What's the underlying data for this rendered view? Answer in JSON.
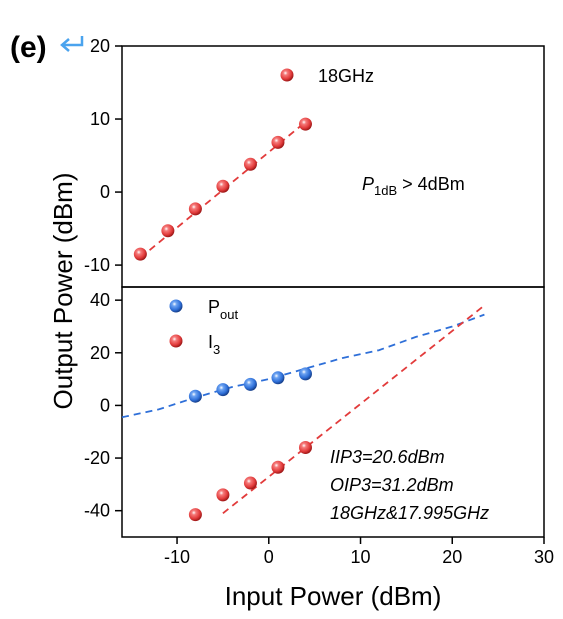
{
  "panel_label": "(e)",
  "chart_data": [
    {
      "type": "scatter",
      "title": "",
      "xlabel": "Input Power (dBm)",
      "ylabel": "Output Power (dBm)",
      "xlim": [
        -16,
        30
      ],
      "ylim": [
        -13,
        20
      ],
      "yticks": [
        -10,
        0,
        10,
        20
      ],
      "legend": "top-center",
      "annotation": {
        "p_main": "P",
        "p_sub": "1dB",
        "p_rest": " > 4dBm"
      },
      "series": [
        {
          "name": "18GHz",
          "color": "#e23b3b",
          "x": [
            -14,
            -11,
            -8,
            -5,
            -2,
            1,
            4
          ],
          "y": [
            -8.5,
            -5.3,
            -2.3,
            0.8,
            3.8,
            6.8,
            9.3
          ]
        }
      ],
      "fit_lines": [
        {
          "color": "#e23b3b",
          "style": "dashed",
          "x": [
            -14,
            4
          ],
          "y": [
            -9.0,
            9.6
          ]
        }
      ]
    },
    {
      "type": "scatter",
      "title": "",
      "xlabel": "Input Power (dBm)",
      "ylabel": "Output Power (dBm)",
      "xlim": [
        -16,
        30
      ],
      "ylim": [
        -50,
        45
      ],
      "yticks": [
        -40,
        -20,
        0,
        20,
        40
      ],
      "xticks": [
        -10,
        0,
        10,
        20,
        30
      ],
      "legend": "top-left",
      "annotations": [
        "IIP3=20.6dBm",
        "OIP3=31.2dBm",
        "18GHz&17.995GHz"
      ],
      "series": [
        {
          "name_main": "P",
          "name_sub": "out",
          "color": "#2e6fd8",
          "x": [
            -8,
            -5,
            -2,
            1,
            4
          ],
          "y": [
            3.5,
            6,
            8,
            10.5,
            12
          ]
        },
        {
          "name_main": "I",
          "name_sub": "3",
          "color": "#e23b3b",
          "x": [
            -8,
            -5,
            -2,
            1,
            4
          ],
          "y": [
            -41.5,
            -34,
            -29.5,
            -23.5,
            -16
          ]
        }
      ],
      "fit_lines": [
        {
          "color": "#2e6fd8",
          "style": "dashed",
          "x": [
            -16,
            -12,
            -8,
            -4,
            0,
            4,
            8,
            12,
            16,
            20,
            23.5
          ],
          "y": [
            -4.5,
            -1.5,
            3,
            7,
            10,
            14,
            18,
            21,
            26,
            30,
            34.5
          ]
        },
        {
          "color": "#e23b3b",
          "style": "dashed",
          "x": [
            -5,
            23.5
          ],
          "y": [
            -41,
            38
          ]
        }
      ]
    }
  ]
}
